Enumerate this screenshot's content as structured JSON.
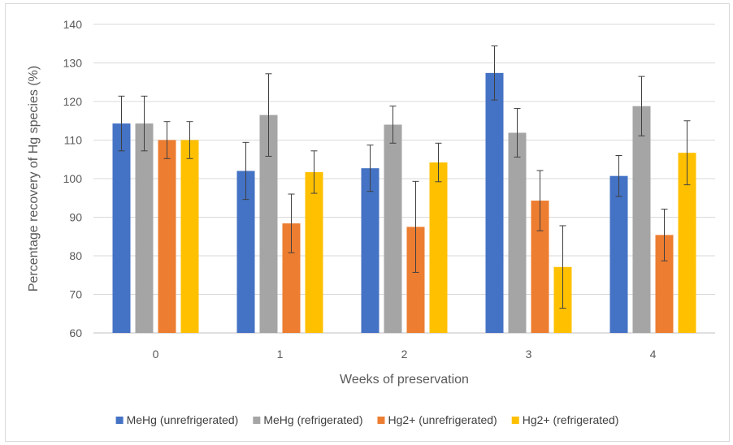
{
  "chart_data": {
    "type": "bar",
    "title": "",
    "xlabel": "Weeks of preservation",
    "ylabel": "Percentage recovery of Hg species (%)",
    "ylim": [
      60,
      140
    ],
    "yticks": [
      60,
      70,
      80,
      90,
      100,
      110,
      120,
      130,
      140
    ],
    "grid": true,
    "legend_position": "bottom",
    "categories": [
      "0",
      "1",
      "2",
      "3",
      "4"
    ],
    "series": [
      {
        "name": "MeHg (unrefrigerated)",
        "color": "#4472C4",
        "values": [
          114.3,
          102.0,
          102.7,
          127.4,
          100.7
        ],
        "errors": [
          7.1,
          7.4,
          6.0,
          7.0,
          5.3
        ]
      },
      {
        "name": "MeHg (refrigerated)",
        "color": "#A5A5A5",
        "values": [
          114.3,
          116.5,
          114.0,
          111.9,
          118.8
        ],
        "errors": [
          7.1,
          10.7,
          4.8,
          6.3,
          7.7
        ]
      },
      {
        "name": "Hg2+ (unrefrigerated)",
        "color": "#ED7D31",
        "values": [
          110.0,
          88.4,
          87.5,
          94.3,
          85.4
        ],
        "errors": [
          4.8,
          7.6,
          11.8,
          7.8,
          6.7
        ]
      },
      {
        "name": "Hg2+ (refrigerated)",
        "color": "#FFC000",
        "values": [
          110.0,
          101.7,
          104.2,
          77.1,
          106.7
        ],
        "errors": [
          4.8,
          5.5,
          5.0,
          10.7,
          8.3
        ]
      }
    ]
  }
}
